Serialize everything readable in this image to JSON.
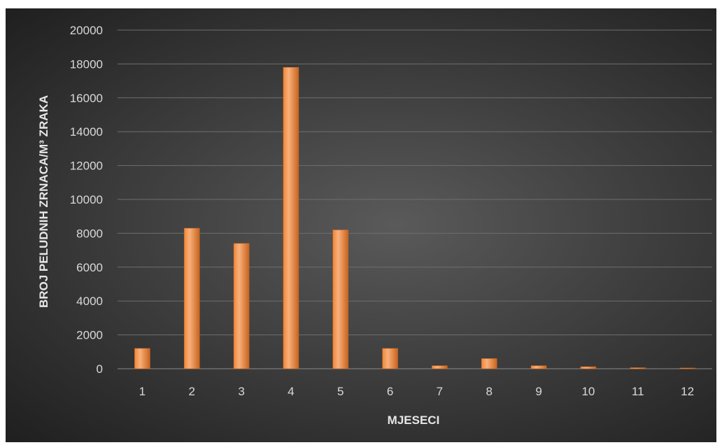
{
  "chart_data": {
    "type": "bar",
    "categories": [
      "1",
      "2",
      "3",
      "4",
      "5",
      "6",
      "7",
      "8",
      "9",
      "10",
      "11",
      "12"
    ],
    "values": [
      1200,
      8300,
      7400,
      17800,
      8200,
      1200,
      180,
      600,
      180,
      120,
      60,
      20
    ],
    "xlabel": "MJESECI",
    "ylabel": "BROJ PELUDNIH ZRNACA/M³ ZRAKA",
    "ylim": [
      0,
      20000
    ],
    "yticks": [
      "0",
      "2000",
      "4000",
      "6000",
      "8000",
      "10000",
      "12000",
      "14000",
      "16000",
      "18000",
      "20000"
    ],
    "grid": true,
    "legend": "none",
    "colors": {
      "bar": "#f0873a",
      "bar_highlight": "#f9b07a",
      "bar_shadow": "#c8641e",
      "background": "#404040",
      "gridline": "#6e6e6e"
    }
  }
}
